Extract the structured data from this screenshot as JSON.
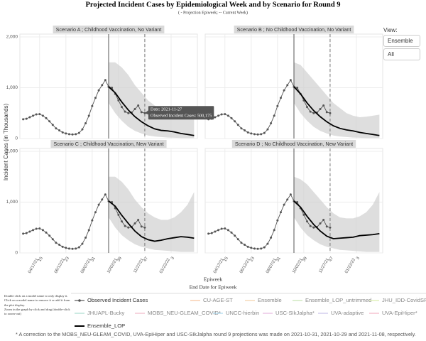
{
  "title": "Projected Incident Cases by Epidemiological Week and by Scenario for Round 9",
  "subtitle": "( - Projection Epiweek; -- Current Week)",
  "y_axis_label": "Incident Cases (in Thousands)",
  "x_axis_label": "Epiweek",
  "x_axis_sublabel": "End Date for Epiweek",
  "view": {
    "label": "View:",
    "buttons": [
      "Ensemble",
      "All"
    ]
  },
  "instructions": [
    "Double click on a model name to only display it.",
    "Click on a model name to remove it or add it from the plot display.",
    "Zoom in the graph by click and drag (double-click to zoom-out)"
  ],
  "footnote": "* A correction to the MOBS_NEU-GLEAM_COVID, UVA-EpiHiper and USC-SIkJalpha round 9 projections was made on 2021-10-31, 2021-10-29 and 2021-11-08, respectively.",
  "tooltip": [
    "Date: 2021-11-27",
    "Observed Incident Cases:  500,175"
  ],
  "reference_lines": {
    "projection_epiweek": "2021-09-11",
    "current_week": "2021-11-27"
  },
  "legend": [
    {
      "name": "Observed Incident Cases",
      "color": "#555555"
    },
    {
      "name": "CU-AGE-ST",
      "color": "#f6c39c"
    },
    {
      "name": "Ensemble",
      "color": "#f3d0a6"
    },
    {
      "name": "Ensemble_LOP_untrimmed",
      "color": "#c5e3b1"
    },
    {
      "name": "JHU_IDD-CovidSP",
      "color": "#d9ecaa"
    },
    {
      "name": "JHUAPL-Bucky",
      "color": "#a9dccf"
    },
    {
      "name": "MOBS_NEU-GLEAM_COVID*",
      "color": "#f0b7c8"
    },
    {
      "name": "UNCC-hierbin",
      "color": "#a9d8ee"
    },
    {
      "name": "USC-SIkJalpha*",
      "color": "#e6b8e0"
    },
    {
      "name": "UVA-adaptive",
      "color": "#c9c1ea"
    },
    {
      "name": "UVA-EpiHiper*",
      "color": "#f3b4c4"
    },
    {
      "name": "Ensemble_LOP",
      "color": "#000000"
    }
  ],
  "observed": {
    "x": [
      "2021-03-13",
      "2021-03-20",
      "2021-03-27",
      "2021-04-03",
      "2021-04-10",
      "2021-04-17",
      "2021-04-24",
      "2021-05-01",
      "2021-05-08",
      "2021-05-15",
      "2021-05-22",
      "2021-05-29",
      "2021-06-05",
      "2021-06-12",
      "2021-06-19",
      "2021-06-26",
      "2021-07-03",
      "2021-07-10",
      "2021-07-17",
      "2021-07-24",
      "2021-07-31",
      "2021-08-07",
      "2021-08-14",
      "2021-08-21",
      "2021-08-28",
      "2021-09-04",
      "2021-09-11",
      "2021-09-18",
      "2021-09-25",
      "2021-10-02",
      "2021-10-09",
      "2021-10-16",
      "2021-10-23",
      "2021-10-30",
      "2021-11-06",
      "2021-11-13",
      "2021-11-20",
      "2021-11-27"
    ],
    "values": [
      380,
      390,
      420,
      450,
      475,
      480,
      450,
      400,
      340,
      270,
      200,
      160,
      120,
      100,
      85,
      80,
      85,
      110,
      180,
      300,
      450,
      640,
      800,
      950,
      1050,
      1150,
      1020,
      1000,
      880,
      750,
      620,
      530,
      500,
      510,
      580,
      650,
      520,
      500.175
    ]
  },
  "chart_data": [
    {
      "type": "line",
      "title": "Scenario A ; Childhood Vaccination, No Variant",
      "show_xtick_labels": false,
      "show_ytick_labels": true,
      "x": [
        "2021-09-11",
        "2021-09-25",
        "2021-10-09",
        "2021-10-23",
        "2021-11-06",
        "2021-11-20",
        "2021-12-04",
        "2021-12-18",
        "2022-01-01",
        "2022-01-15",
        "2022-01-29",
        "2022-02-12",
        "2022-02-26",
        "2022-03-12"
      ],
      "values": [
        1020,
        900,
        720,
        560,
        430,
        330,
        250,
        190,
        160,
        150,
        130,
        100,
        80,
        60
      ],
      "lower": [
        700,
        500,
        350,
        230,
        150,
        100,
        60,
        40,
        30,
        20,
        15,
        10,
        10,
        10
      ],
      "upper": [
        1500,
        1500,
        1400,
        1250,
        1050,
        900,
        750,
        650,
        580,
        500,
        470,
        450,
        440,
        430
      ],
      "xlim": [
        "2021-03-06",
        "2022-03-19"
      ],
      "ylim": [
        0,
        2000
      ],
      "yticks": [
        0,
        {
          "value": 1000,
          "label": "1,000"
        },
        {
          "value": 2000,
          "label": "2,000"
        }
      ],
      "xticks": [
        {
          "value": "2021-04-17",
          "label": "04/17/21",
          "week": "15"
        },
        {
          "value": "2021-06-12",
          "label": "06/12/21",
          "week": "23"
        },
        {
          "value": "2021-08-07",
          "label": "08/07/21",
          "week": "31"
        },
        {
          "value": "2021-10-02",
          "label": "10/02/21",
          "week": "39"
        },
        {
          "value": "2021-11-27",
          "label": "11/27/21",
          "week": "47"
        },
        {
          "value": "2022-01-22",
          "label": "01/22/22",
          "week": "3"
        }
      ],
      "grid": true
    },
    {
      "type": "line",
      "title": "Scenario B ; No Childhood Vaccination, No Variant",
      "show_xtick_labels": false,
      "show_ytick_labels": false,
      "x": [
        "2021-09-11",
        "2021-09-25",
        "2021-10-09",
        "2021-10-23",
        "2021-11-06",
        "2021-11-20",
        "2021-12-04",
        "2021-12-18",
        "2022-01-01",
        "2022-01-15",
        "2022-01-29",
        "2022-02-12",
        "2022-02-26",
        "2022-03-12"
      ],
      "values": [
        1020,
        880,
        700,
        550,
        430,
        330,
        250,
        200,
        170,
        150,
        120,
        100,
        80,
        60
      ],
      "lower": [
        700,
        500,
        350,
        230,
        150,
        100,
        60,
        40,
        30,
        20,
        15,
        10,
        10,
        10
      ],
      "upper": [
        1500,
        1450,
        1300,
        1150,
        1000,
        850,
        700,
        600,
        500,
        450,
        420,
        430,
        450,
        470
      ],
      "xlim": [
        "2021-03-06",
        "2022-03-19"
      ],
      "ylim": [
        0,
        2000
      ],
      "yticks": [
        0,
        {
          "value": 1000,
          "label": "1,000"
        },
        {
          "value": 2000,
          "label": "2,000"
        }
      ],
      "xticks": [
        {
          "value": "2021-04-17",
          "label": "04/17/21",
          "week": "15"
        },
        {
          "value": "2021-06-12",
          "label": "06/12/21",
          "week": "23"
        },
        {
          "value": "2021-08-07",
          "label": "08/07/21",
          "week": "31"
        },
        {
          "value": "2021-10-02",
          "label": "10/02/21",
          "week": "39"
        },
        {
          "value": "2021-11-27",
          "label": "11/27/21",
          "week": "47"
        },
        {
          "value": "2022-01-22",
          "label": "01/22/22",
          "week": "3"
        }
      ],
      "grid": true
    },
    {
      "type": "line",
      "title": "Scenario C ; Childhood Vaccination, New Variant",
      "show_xtick_labels": true,
      "show_ytick_labels": true,
      "x": [
        "2021-09-11",
        "2021-09-25",
        "2021-10-09",
        "2021-10-23",
        "2021-11-06",
        "2021-11-20",
        "2021-12-04",
        "2021-12-18",
        "2022-01-01",
        "2022-01-15",
        "2022-01-29",
        "2022-02-12",
        "2022-02-26",
        "2022-03-12"
      ],
      "values": [
        1020,
        920,
        740,
        580,
        430,
        320,
        260,
        230,
        250,
        280,
        300,
        320,
        310,
        290
      ],
      "lower": [
        700,
        500,
        350,
        250,
        170,
        120,
        90,
        60,
        50,
        40,
        30,
        20,
        20,
        20
      ],
      "upper": [
        1500,
        1500,
        1400,
        1250,
        1050,
        900,
        780,
        700,
        650,
        650,
        700,
        800,
        950,
        1200
      ],
      "xlim": [
        "2021-03-06",
        "2022-03-19"
      ],
      "ylim": [
        0,
        2000
      ],
      "yticks": [
        0,
        {
          "value": 1000,
          "label": "1,000"
        },
        {
          "value": 2000,
          "label": "2,000"
        }
      ],
      "xticks": [
        {
          "value": "2021-04-17",
          "label": "04/17/21",
          "week": "15"
        },
        {
          "value": "2021-06-12",
          "label": "06/12/21",
          "week": "23"
        },
        {
          "value": "2021-08-07",
          "label": "08/07/21",
          "week": "31"
        },
        {
          "value": "2021-10-02",
          "label": "10/02/21",
          "week": "39"
        },
        {
          "value": "2021-11-27",
          "label": "11/27/21",
          "week": "47"
        },
        {
          "value": "2022-01-22",
          "label": "01/22/22",
          "week": "3"
        }
      ],
      "grid": true
    },
    {
      "type": "line",
      "title": "Scenario D ; No Childhood Vaccination, New Variant",
      "show_xtick_labels": true,
      "show_ytick_labels": false,
      "x": [
        "2021-09-11",
        "2021-09-25",
        "2021-10-09",
        "2021-10-23",
        "2021-11-06",
        "2021-11-20",
        "2021-12-04",
        "2021-12-18",
        "2022-01-01",
        "2022-01-15",
        "2022-01-29",
        "2022-02-12",
        "2022-02-26",
        "2022-03-12"
      ],
      "values": [
        1020,
        900,
        720,
        560,
        430,
        330,
        280,
        290,
        300,
        310,
        340,
        350,
        360,
        380
      ],
      "lower": [
        700,
        500,
        350,
        250,
        170,
        120,
        90,
        60,
        50,
        40,
        30,
        20,
        20,
        20
      ],
      "upper": [
        1500,
        1450,
        1350,
        1200,
        1050,
        900,
        780,
        700,
        680,
        680,
        720,
        800,
        950,
        1200
      ],
      "xlim": [
        "2021-03-06",
        "2022-03-19"
      ],
      "ylim": [
        0,
        2000
      ],
      "yticks": [
        0,
        {
          "value": 1000,
          "label": "1,000"
        },
        {
          "value": 2000,
          "label": "2,000"
        }
      ],
      "xticks": [
        {
          "value": "2021-04-17",
          "label": "04/17/21",
          "week": "15"
        },
        {
          "value": "2021-06-12",
          "label": "06/12/21",
          "week": "23"
        },
        {
          "value": "2021-08-07",
          "label": "08/07/21",
          "week": "31"
        },
        {
          "value": "2021-10-02",
          "label": "10/02/21",
          "week": "39"
        },
        {
          "value": "2021-11-27",
          "label": "11/27/21",
          "week": "47"
        },
        {
          "value": "2022-01-22",
          "label": "01/22/22",
          "week": "3"
        }
      ],
      "grid": true
    }
  ]
}
